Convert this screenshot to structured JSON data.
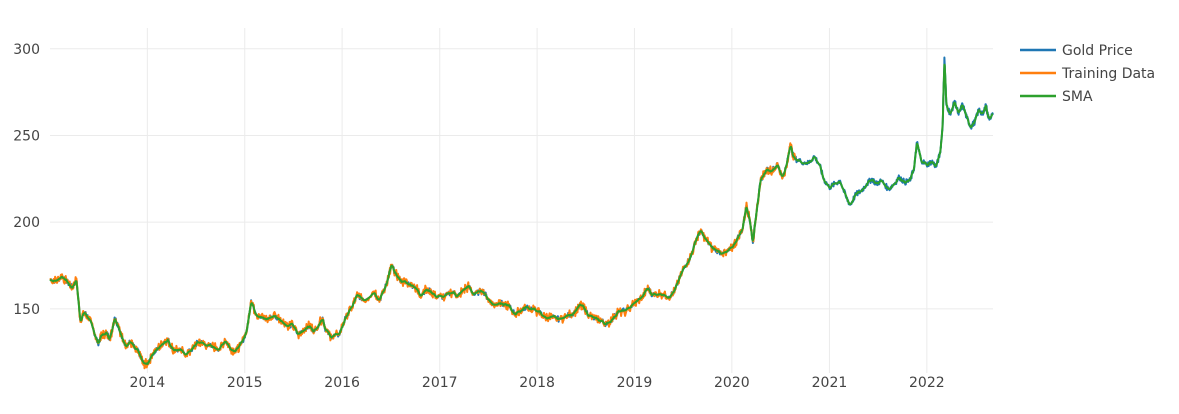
{
  "chart_data": {
    "type": "line",
    "title": "",
    "xlabel": "",
    "ylabel": "",
    "xlim": [
      "2013-01-01",
      "2022-09-06"
    ],
    "ylim": [
      113,
      312
    ],
    "x_ticks": [
      "2014",
      "2015",
      "2016",
      "2017",
      "2018",
      "2019",
      "2020",
      "2021",
      "2022"
    ],
    "y_ticks": [
      150,
      200,
      250,
      300
    ],
    "grid": true,
    "legend": "top-right",
    "colors": {
      "gold": "#1f77b4",
      "training": "#ff7f0e",
      "sma": "#2ca02c"
    },
    "series": [
      {
        "name": "Gold Price",
        "role": "full",
        "points": [
          [
            "2013-01-01",
            167
          ],
          [
            "2013-01-25",
            166
          ],
          [
            "2013-02-15",
            169
          ],
          [
            "2013-03-10",
            165
          ],
          [
            "2013-03-25",
            162
          ],
          [
            "2013-04-10",
            167
          ],
          [
            "2013-04-25",
            143
          ],
          [
            "2013-05-10",
            148
          ],
          [
            "2013-05-25",
            145
          ],
          [
            "2013-06-15",
            137
          ],
          [
            "2013-06-30",
            130
          ],
          [
            "2013-07-15",
            135
          ],
          [
            "2013-07-31",
            136
          ],
          [
            "2013-08-15",
            133
          ],
          [
            "2013-08-31",
            145
          ],
          [
            "2013-09-15",
            140
          ],
          [
            "2013-09-30",
            132
          ],
          [
            "2013-10-15",
            129
          ],
          [
            "2013-10-31",
            131
          ],
          [
            "2013-11-15",
            127
          ],
          [
            "2013-11-30",
            125
          ],
          [
            "2013-12-15",
            119
          ],
          [
            "2013-12-31",
            118
          ],
          [
            "2014-01-20",
            124
          ],
          [
            "2014-02-10",
            127
          ],
          [
            "2014-03-05",
            131
          ],
          [
            "2014-03-20",
            132
          ],
          [
            "2014-04-05",
            127
          ],
          [
            "2014-04-30",
            126
          ],
          [
            "2014-05-30",
            124
          ],
          [
            "2014-06-25",
            128
          ],
          [
            "2014-07-10",
            131
          ],
          [
            "2014-07-31",
            130
          ],
          [
            "2014-08-31",
            128
          ],
          [
            "2014-09-30",
            127
          ],
          [
            "2014-10-20",
            132
          ],
          [
            "2014-11-10",
            127
          ],
          [
            "2014-11-30",
            126
          ],
          [
            "2014-12-20",
            130
          ],
          [
            "2015-01-10",
            138
          ],
          [
            "2015-01-25",
            155
          ],
          [
            "2015-02-10",
            148
          ],
          [
            "2015-02-28",
            145
          ],
          [
            "2015-03-25",
            144
          ],
          [
            "2015-04-20",
            146
          ],
          [
            "2015-05-15",
            144
          ],
          [
            "2015-06-10",
            140
          ],
          [
            "2015-06-30",
            141
          ],
          [
            "2015-07-20",
            135
          ],
          [
            "2015-08-10",
            138
          ],
          [
            "2015-08-31",
            140
          ],
          [
            "2015-09-20",
            137
          ],
          [
            "2015-10-20",
            145
          ],
          [
            "2015-10-31",
            138
          ],
          [
            "2015-11-20",
            134
          ],
          [
            "2015-12-20",
            135
          ],
          [
            "2016-01-15",
            145
          ],
          [
            "2016-02-10",
            152
          ],
          [
            "2016-02-28",
            158
          ],
          [
            "2016-03-25",
            155
          ],
          [
            "2016-04-30",
            160
          ],
          [
            "2016-05-20",
            155
          ],
          [
            "2016-06-10",
            162
          ],
          [
            "2016-06-25",
            170
          ],
          [
            "2016-07-05",
            175
          ],
          [
            "2016-07-20",
            170
          ],
          [
            "2016-08-10",
            166
          ],
          [
            "2016-08-31",
            165
          ],
          [
            "2016-09-30",
            163
          ],
          [
            "2016-10-20",
            158
          ],
          [
            "2016-11-10",
            161
          ],
          [
            "2016-11-30",
            160
          ],
          [
            "2016-12-20",
            157
          ],
          [
            "2017-01-20",
            157
          ],
          [
            "2017-02-20",
            160
          ],
          [
            "2017-03-10",
            157
          ],
          [
            "2017-03-31",
            161
          ],
          [
            "2017-04-20",
            163
          ],
          [
            "2017-05-10",
            158
          ],
          [
            "2017-06-10",
            161
          ],
          [
            "2017-06-30",
            156
          ],
          [
            "2017-07-25",
            152
          ],
          [
            "2017-08-15",
            154
          ],
          [
            "2017-08-31",
            152
          ],
          [
            "2017-09-15",
            152
          ],
          [
            "2017-10-10",
            147
          ],
          [
            "2017-10-31",
            149
          ],
          [
            "2017-11-20",
            151
          ],
          [
            "2017-12-15",
            150
          ],
          [
            "2018-01-10",
            148
          ],
          [
            "2018-01-31",
            145
          ],
          [
            "2018-02-28",
            145
          ],
          [
            "2018-03-25",
            144
          ],
          [
            "2018-04-25",
            146
          ],
          [
            "2018-05-20",
            148
          ],
          [
            "2018-06-10",
            152
          ],
          [
            "2018-06-25",
            151
          ],
          [
            "2018-07-15",
            146
          ],
          [
            "2018-08-10",
            144
          ],
          [
            "2018-08-31",
            143
          ],
          [
            "2018-09-20",
            141
          ],
          [
            "2018-10-15",
            145
          ],
          [
            "2018-10-31",
            148
          ],
          [
            "2018-11-30",
            149
          ],
          [
            "2018-12-31",
            153
          ],
          [
            "2019-01-31",
            157
          ],
          [
            "2019-02-20",
            162
          ],
          [
            "2019-03-10",
            158
          ],
          [
            "2019-04-10",
            159
          ],
          [
            "2019-05-10",
            157
          ],
          [
            "2019-05-31",
            160
          ],
          [
            "2019-06-20",
            168
          ],
          [
            "2019-07-10",
            175
          ],
          [
            "2019-07-31",
            180
          ],
          [
            "2019-08-20",
            190
          ],
          [
            "2019-09-05",
            195
          ],
          [
            "2019-09-25",
            190
          ],
          [
            "2019-10-20",
            185
          ],
          [
            "2019-11-15",
            183
          ],
          [
            "2019-12-10",
            182
          ],
          [
            "2019-12-31",
            185
          ],
          [
            "2020-01-20",
            190
          ],
          [
            "2020-02-10",
            196
          ],
          [
            "2020-02-25",
            210
          ],
          [
            "2020-03-10",
            200
          ],
          [
            "2020-03-20",
            188
          ],
          [
            "2020-04-05",
            210
          ],
          [
            "2020-04-20",
            225
          ],
          [
            "2020-05-10",
            230
          ],
          [
            "2020-05-31",
            230
          ],
          [
            "2020-06-20",
            233
          ],
          [
            "2020-07-10",
            226
          ],
          [
            "2020-07-25",
            233
          ],
          [
            "2020-08-07",
            245
          ],
          [
            "2020-08-20",
            237
          ],
          [
            "2020-09-15",
            235
          ],
          [
            "2020-10-15",
            234
          ],
          [
            "2020-11-05",
            238
          ],
          [
            "2020-11-25",
            233
          ],
          [
            "2020-12-10",
            225
          ],
          [
            "2020-12-31",
            220
          ],
          [
            "2021-01-20",
            222
          ],
          [
            "2021-02-10",
            224
          ],
          [
            "2021-03-05",
            214
          ],
          [
            "2021-03-20",
            210
          ],
          [
            "2021-04-10",
            216
          ],
          [
            "2021-04-30",
            218
          ],
          [
            "2021-05-20",
            222
          ],
          [
            "2021-06-10",
            225
          ],
          [
            "2021-06-25",
            222
          ],
          [
            "2021-07-15",
            224
          ],
          [
            "2021-08-10",
            219
          ],
          [
            "2021-08-31",
            222
          ],
          [
            "2021-09-20",
            226
          ],
          [
            "2021-10-10",
            223
          ],
          [
            "2021-10-31",
            224
          ],
          [
            "2021-11-15",
            232
          ],
          [
            "2021-11-25",
            246
          ],
          [
            "2021-12-10",
            236
          ],
          [
            "2021-12-31",
            233
          ],
          [
            "2022-01-20",
            235
          ],
          [
            "2022-02-05",
            232
          ],
          [
            "2022-02-20",
            240
          ],
          [
            "2022-03-01",
            255
          ],
          [
            "2022-03-08",
            295
          ],
          [
            "2022-03-15",
            268
          ],
          [
            "2022-03-31",
            262
          ],
          [
            "2022-04-15",
            270
          ],
          [
            "2022-04-30",
            262
          ],
          [
            "2022-05-15",
            268
          ],
          [
            "2022-05-31",
            260
          ],
          [
            "2022-06-15",
            255
          ],
          [
            "2022-06-30",
            258
          ],
          [
            "2022-07-15",
            265
          ],
          [
            "2022-07-31",
            262
          ],
          [
            "2022-08-10",
            268
          ],
          [
            "2022-08-20",
            260
          ],
          [
            "2022-09-06",
            262
          ]
        ]
      },
      {
        "name": "Training Data",
        "role": "training",
        "end": "2020-09-01"
      },
      {
        "name": "SMA",
        "role": "smoothed"
      }
    ]
  }
}
